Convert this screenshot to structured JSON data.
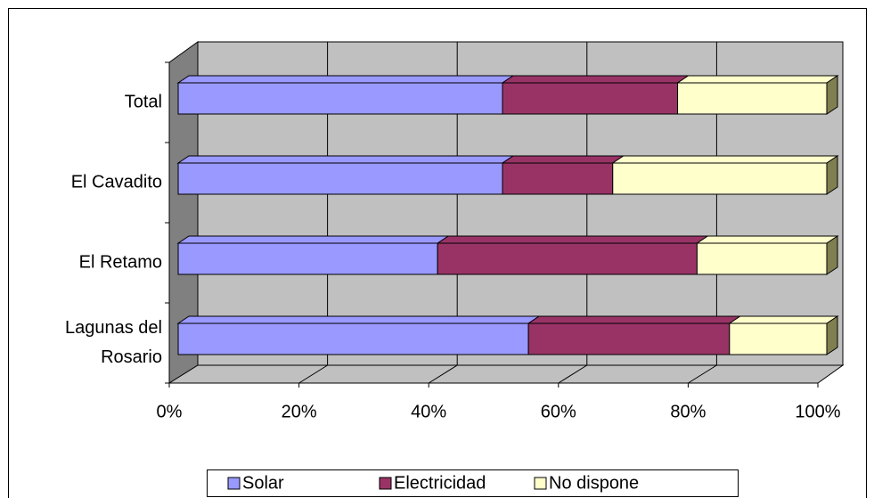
{
  "chart_data": {
    "type": "bar3d_stacked_horizontal",
    "categories": [
      "Total",
      "El Cavadito",
      "El Retamo",
      "Lagunas del Rosario"
    ],
    "series": [
      {
        "name": "Solar",
        "color": "#9999ff",
        "values": [
          50,
          50,
          40,
          54
        ]
      },
      {
        "name": "Electricidad",
        "color": "#993366",
        "values": [
          27,
          17,
          40,
          31
        ]
      },
      {
        "name": "No dispone",
        "color": "#ffffcc",
        "values": [
          23,
          33,
          20,
          15
        ]
      }
    ],
    "xlim": [
      0,
      100
    ],
    "xticks": [
      {
        "value": 0,
        "label": "0%"
      },
      {
        "value": 20,
        "label": "20%"
      },
      {
        "value": 40,
        "label": "40%"
      },
      {
        "value": 60,
        "label": "60%"
      },
      {
        "value": 80,
        "label": "80%"
      },
      {
        "value": 100,
        "label": "100%"
      }
    ],
    "grid": true,
    "legend": "bottom"
  }
}
